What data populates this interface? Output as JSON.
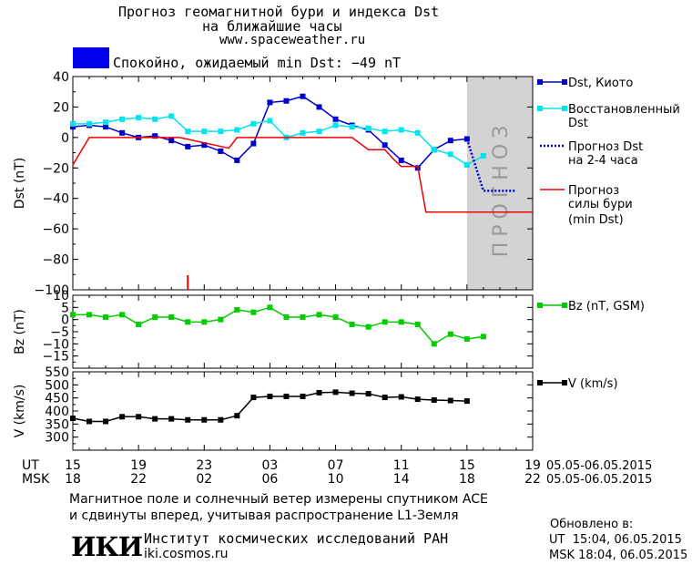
{
  "header": {
    "title_line1": "Прогноз геомагнитной бури и индекса Dst",
    "title_line2": "на ближайшие часы",
    "url": "www.spaceweather.ru",
    "status_text": "Спокойно, ожидаемый min Dst: −49 nT",
    "status_color": "#0000ee"
  },
  "legend": {
    "dst_kyoto": "Dst, Киото",
    "restored_line1": "Восстановленный",
    "restored_line2": "Dst",
    "forecast_line1": "Прогноз Dst",
    "forecast_line2": "на 2-4 часа",
    "storm_line1": "Прогноз",
    "storm_line2": "силы бури",
    "storm_line3": "(min Dst)",
    "bz": "Bz (nT, GSM)",
    "v": "V (km/s)"
  },
  "forecast_band_label": "ПРОГНОЗ",
  "x_axis": {
    "ut_label": "UT",
    "msk_label": "MSK",
    "ut_ticks": [
      "15",
      "19",
      "23",
      "03",
      "07",
      "11",
      "15",
      "19"
    ],
    "msk_ticks": [
      "18",
      "22",
      "02",
      "06",
      "10",
      "14",
      "18",
      "22"
    ],
    "date_range_ut": "05.05-06.05.2015",
    "date_range_msk": "05.05-06.05.2015"
  },
  "footer": {
    "note_line1": "Магнитное поле и солнечный ветер измерены спутником ACE",
    "note_line2": "и сдвинуты вперед, учитывая распространение L1-Земля",
    "logo_text": "ИКИ",
    "institute": "Институт космических исследований РАН",
    "institute_url": "iki.cosmos.ru",
    "updated_label": "Обновлено в:",
    "updated_ut": "UT  15:04, 06.05.2015",
    "updated_msk": "MSK 18:04, 06.05.2015"
  },
  "chart_data": [
    {
      "type": "line",
      "ylabel": "Dst (nT)",
      "ylim": [
        -100,
        40
      ],
      "yticks": [
        40,
        20,
        0,
        -20,
        -40,
        -60,
        -80,
        -100
      ],
      "xlim_hours_from_15UT": [
        0,
        28
      ],
      "forecast_band_hours": [
        24,
        28
      ],
      "series": [
        {
          "name": "Dst, Киото",
          "color": "#0000cc",
          "x": [
            0,
            1,
            2,
            3,
            4,
            5,
            6,
            7,
            8,
            9,
            10,
            11,
            12,
            13,
            14,
            15,
            16,
            17,
            18,
            19,
            20,
            21,
            22,
            23,
            24
          ],
          "values": [
            7,
            8,
            7,
            3,
            0,
            1,
            -2,
            -6,
            -5,
            -9,
            -15,
            -4,
            23,
            24,
            27,
            20,
            12,
            8,
            5,
            -5,
            -15,
            -20,
            -8,
            -2,
            -1
          ]
        },
        {
          "name": "Восстановленный Dst",
          "color": "#00e5ee",
          "x": [
            0,
            1,
            2,
            3,
            4,
            5,
            6,
            7,
            8,
            9,
            10,
            11,
            12,
            13,
            14,
            15,
            16,
            17,
            18,
            19,
            20,
            21,
            22,
            23,
            24,
            25
          ],
          "values": [
            9,
            9,
            10,
            12,
            13,
            12,
            14,
            4,
            4,
            4,
            5,
            9,
            11,
            0,
            3,
            4,
            8,
            7,
            6,
            4,
            5,
            3,
            -8,
            -11,
            -18,
            -12
          ]
        },
        {
          "name": "Прогноз Dst на 2-4 часа",
          "color": "#0000cc",
          "style": "dotted",
          "x": [
            24,
            25,
            26,
            27
          ],
          "values": [
            -1,
            -35,
            -35,
            -35
          ]
        },
        {
          "name": "Прогноз силы бури (min Dst)",
          "color": "#ee0000",
          "x": [
            0,
            1,
            6.5,
            9.5,
            10,
            17,
            18,
            19,
            19.5,
            20,
            21,
            21.5,
            23,
            28
          ],
          "values": [
            -18,
            0,
            0,
            -7,
            0,
            0,
            -8,
            -8,
            -14,
            -19,
            -19,
            -49,
            -49,
            -49
          ]
        }
      ],
      "marker": {
        "x": 7,
        "color": "#ee0000"
      }
    },
    {
      "type": "line",
      "ylabel": "Bz (nT)",
      "ylim": [
        -20,
        10
      ],
      "yticks": [
        10,
        5,
        0,
        -5,
        -10,
        -15
      ],
      "series": [
        {
          "name": "Bz (nT, GSM)",
          "color": "#00cc00",
          "x": [
            0,
            1,
            2,
            3,
            4,
            5,
            6,
            7,
            8,
            9,
            10,
            11,
            12,
            13,
            14,
            15,
            16,
            17,
            18,
            19,
            20,
            21,
            22,
            23,
            24,
            25
          ],
          "values": [
            2,
            2,
            1,
            2,
            -2,
            1,
            1,
            -1,
            -1,
            0,
            4,
            3,
            5,
            1,
            1,
            2,
            1,
            -2,
            -3,
            -1,
            -1,
            -2,
            -10,
            -6,
            -8,
            -7
          ]
        }
      ]
    },
    {
      "type": "line",
      "ylabel": "V (km/s)",
      "ylim": [
        250,
        550
      ],
      "yticks": [
        550,
        500,
        450,
        400,
        350,
        300
      ],
      "series": [
        {
          "name": "V (km/s)",
          "color": "#000000",
          "x": [
            0,
            1,
            2,
            3,
            4,
            5,
            6,
            7,
            8,
            9,
            10,
            11,
            12,
            13,
            14,
            15,
            16,
            17,
            18,
            19,
            20,
            21,
            22,
            23,
            24
          ],
          "values": [
            372,
            360,
            360,
            378,
            378,
            370,
            370,
            366,
            366,
            366,
            382,
            452,
            456,
            456,
            456,
            470,
            472,
            468,
            466,
            452,
            454,
            445,
            442,
            440,
            438
          ]
        }
      ]
    }
  ]
}
